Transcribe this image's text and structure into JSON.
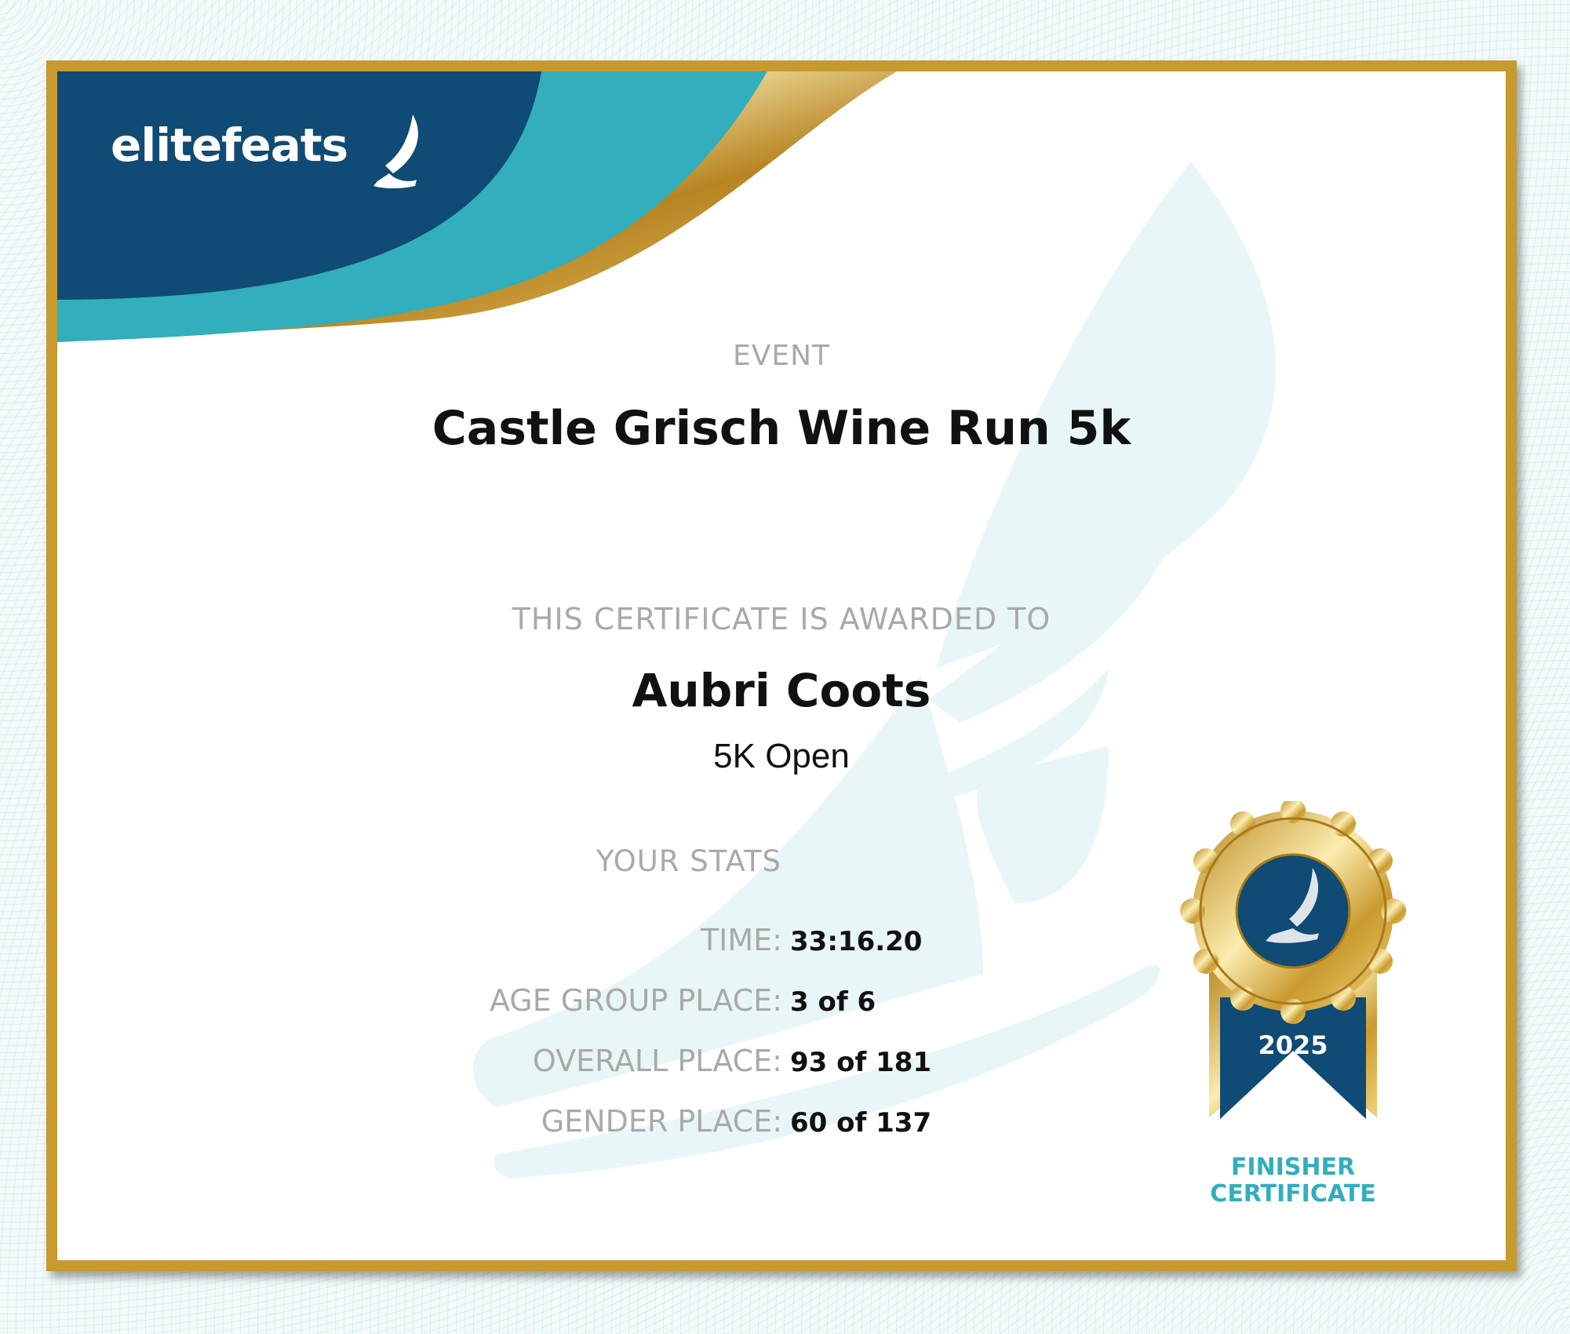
{
  "brand": {
    "logo_text": "elitefeats",
    "navy": "#0f4b74",
    "teal": "#32aebc",
    "gold": "#c69a2e"
  },
  "event": {
    "label": "EVENT",
    "name": "Castle Grisch Wine Run 5k"
  },
  "award": {
    "label": "THIS CERTIFICATE IS AWARDED TO",
    "name": "Aubri Coots",
    "division": "5K Open"
  },
  "stats": {
    "heading": "YOUR STATS",
    "items": [
      {
        "label": "TIME:",
        "value": "33:16.20"
      },
      {
        "label": "AGE GROUP PLACE:",
        "value": "3 of 6"
      },
      {
        "label": "OVERALL PLACE:",
        "value": "93 of 181"
      },
      {
        "label": "GENDER PLACE:",
        "value": "60 of 137"
      }
    ]
  },
  "badge": {
    "year": "2025",
    "line1": "FINISHER",
    "line2": "CERTIFICATE",
    "icon": "winged-foot-icon"
  }
}
